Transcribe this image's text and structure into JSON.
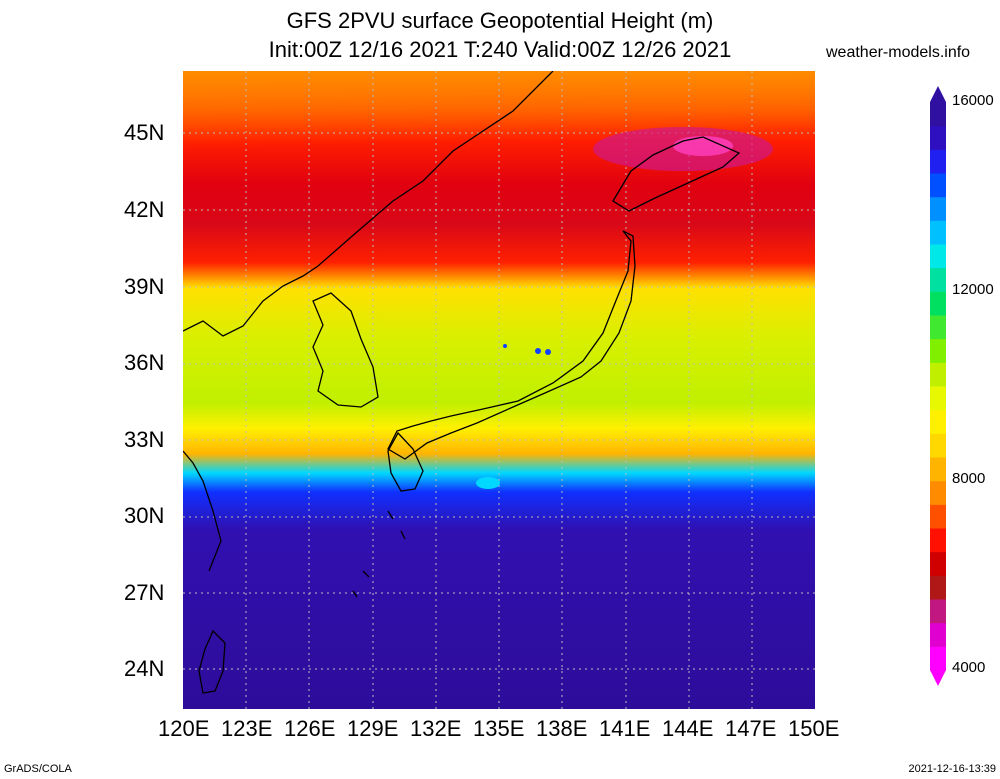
{
  "title": {
    "line1": "GFS 2PVU surface Geopotential Height (m)",
    "line2": "Init:00Z 12/16 2021 T:240 Valid:00Z 12/26 2021"
  },
  "credit": "weather-models.info",
  "footer": {
    "left": "GrADS/COLA",
    "right": "2021-12-16-13:39"
  },
  "axes": {
    "lat": [
      "45N",
      "42N",
      "39N",
      "36N",
      "33N",
      "30N",
      "27N",
      "24N"
    ],
    "lon": [
      "120E",
      "123E",
      "126E",
      "129E",
      "132E",
      "135E",
      "138E",
      "141E",
      "144E",
      "147E",
      "150E"
    ]
  },
  "colorbar": {
    "labels": [
      "16000",
      "12000",
      "8000",
      "4000"
    ],
    "colors": [
      "#ff00ff",
      "#e000d0",
      "#c01880",
      "#b01818",
      "#d00000",
      "#ff1000",
      "#ff5000",
      "#ff8c00",
      "#ffb400",
      "#ffd800",
      "#fff000",
      "#e8f800",
      "#c0f000",
      "#80f000",
      "#40e830",
      "#00e060",
      "#00e0a0",
      "#00e8e8",
      "#00c0ff",
      "#0090ff",
      "#0050ff",
      "#2020f0",
      "#2e10c0",
      "#3010a0"
    ]
  }
}
